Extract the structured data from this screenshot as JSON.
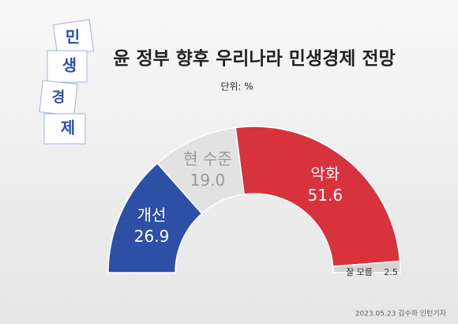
{
  "chart_data": {
    "type": "half-donut",
    "title": "윤 정부 향후 우리나라 민생경제 전망",
    "unit": "단위: %",
    "categories": [
      "개선",
      "현 수준",
      "악화",
      "잘 모름"
    ],
    "values": [
      26.9,
      19.0,
      51.6,
      2.5
    ],
    "value_labels": [
      "26.9",
      "19.0",
      "51.6",
      "2.5"
    ],
    "colors": [
      "#2d4fa6",
      "#e2e2e2",
      "#d8323c",
      "#d4d4d4"
    ],
    "cube_labels": [
      "민",
      "생",
      "경",
      "제"
    ],
    "credit": "2023.05.23 김수하 인턴기자"
  }
}
